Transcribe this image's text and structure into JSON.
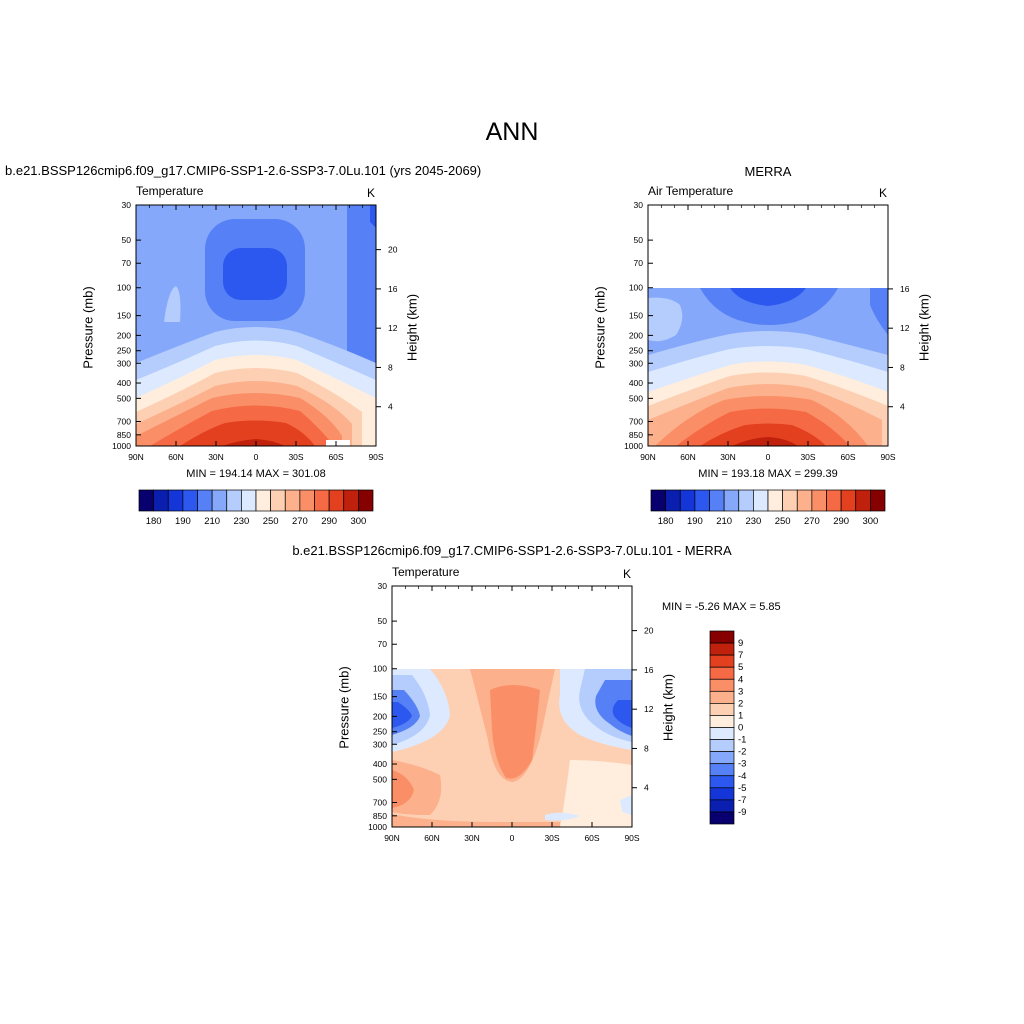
{
  "title": "ANN",
  "lat_ticks": [
    "90N",
    "60N",
    "30N",
    "0",
    "30S",
    "60S",
    "90S"
  ],
  "pressure_ticks": [
    "30",
    "50",
    "70",
    "100",
    "150",
    "200",
    "250",
    "300",
    "400",
    "500",
    "700",
    "850",
    "1000"
  ],
  "height_ticks_full": [
    "20",
    "16",
    "12",
    "8",
    "4"
  ],
  "height_ticks_merra": [
    "16",
    "12",
    "8",
    "4"
  ],
  "ylabel_left": "Pressure (mb)",
  "ylabel_right": "Height (km)",
  "panels": {
    "model": {
      "title": "b.e21.BSSP126cmip6.f09_g17.CMIP6-SSP1-2.6-SSP3-7.0Lu.101 (yrs 2045-2069)",
      "variable": "Temperature",
      "units": "K",
      "min_max": "MIN = 194.14  MAX = 301.08"
    },
    "obs": {
      "title": "MERRA",
      "variable": "Air Temperature",
      "units": "K",
      "min_max": "MIN = 193.18  MAX = 299.39"
    },
    "diff": {
      "title": "b.e21.BSSP126cmip6.f09_g17.CMIP6-SSP1-2.6-SSP3-7.0Lu.101 - MERRA",
      "variable": "Temperature",
      "units": "K",
      "min_max": "MIN =  -5.26  MAX =   5.85"
    }
  },
  "colorbar_temp": {
    "colors": [
      "#08006e",
      "#0a1fb0",
      "#1435d8",
      "#2d58f0",
      "#5680f5",
      "#86a8fa",
      "#b4cdfc",
      "#dce9ff",
      "#ffeedd",
      "#fdd0b4",
      "#fcb08c",
      "#fa8f67",
      "#f56a45",
      "#e2401f",
      "#bf210c",
      "#860000"
    ],
    "labels": [
      "180",
      "190",
      "210",
      "230",
      "250",
      "270",
      "290",
      "300"
    ]
  },
  "colorbar_diff": {
    "colors": [
      "#860000",
      "#bf210c",
      "#e2401f",
      "#f56a45",
      "#fa8f67",
      "#fcb08c",
      "#fdd0b4",
      "#ffeedd",
      "#dce9ff",
      "#b4cdfc",
      "#86a8fa",
      "#5680f5",
      "#2d58f0",
      "#1435d8",
      "#0a1fb0",
      "#08006e"
    ],
    "labels": [
      "9",
      "7",
      "5",
      "4",
      "3",
      "2",
      "1",
      "0",
      "-1",
      "-2",
      "-3",
      "-4",
      "-5",
      "-7",
      "-9"
    ]
  },
  "chart_data": [
    {
      "type": "heatmap",
      "title": "b.e21.BSSP126cmip6.f09_g17.CMIP6-SSP1-2.6-SSP3-7.0Lu.101 (yrs 2045-2069)",
      "subtitle": "Temperature",
      "units": "K",
      "xlabel": "",
      "ylabel": "Pressure (mb)",
      "y2label": "Height (km)",
      "x": [
        "90N",
        "60N",
        "30N",
        "0",
        "30S",
        "60S",
        "90S"
      ],
      "y_pressure": [
        30,
        50,
        70,
        100,
        150,
        200,
        250,
        300,
        400,
        500,
        700,
        850,
        1000
      ],
      "min": 194.14,
      "max": 301.08,
      "contour_levels": [
        180,
        190,
        210,
        230,
        250,
        270,
        290,
        300
      ]
    },
    {
      "type": "heatmap",
      "title": "MERRA",
      "subtitle": "Air Temperature",
      "units": "K",
      "ylabel": "Pressure (mb)",
      "y2label": "Height (km)",
      "x": [
        "90N",
        "60N",
        "30N",
        "0",
        "30S",
        "60S",
        "90S"
      ],
      "y_pressure": [
        30,
        50,
        70,
        100,
        150,
        200,
        250,
        300,
        400,
        500,
        700,
        850,
        1000
      ],
      "data_top_pressure": 100,
      "min": 193.18,
      "max": 299.39,
      "contour_levels": [
        180,
        190,
        210,
        230,
        250,
        270,
        290,
        300
      ]
    },
    {
      "type": "heatmap",
      "title": "b.e21.BSSP126cmip6.f09_g17.CMIP6-SSP1-2.6-SSP3-7.0Lu.101 - MERRA",
      "subtitle": "Temperature",
      "units": "K",
      "ylabel": "Pressure (mb)",
      "y2label": "Height (km)",
      "x": [
        "90N",
        "60N",
        "30N",
        "0",
        "30S",
        "60S",
        "90S"
      ],
      "y_pressure": [
        30,
        50,
        70,
        100,
        150,
        200,
        250,
        300,
        400,
        500,
        700,
        850,
        1000
      ],
      "data_top_pressure": 100,
      "min": -5.26,
      "max": 5.85,
      "contour_levels": [
        -9,
        -7,
        -5,
        -4,
        -3,
        -2,
        -1,
        0,
        1,
        2,
        3,
        4,
        5,
        7,
        9
      ]
    }
  ]
}
